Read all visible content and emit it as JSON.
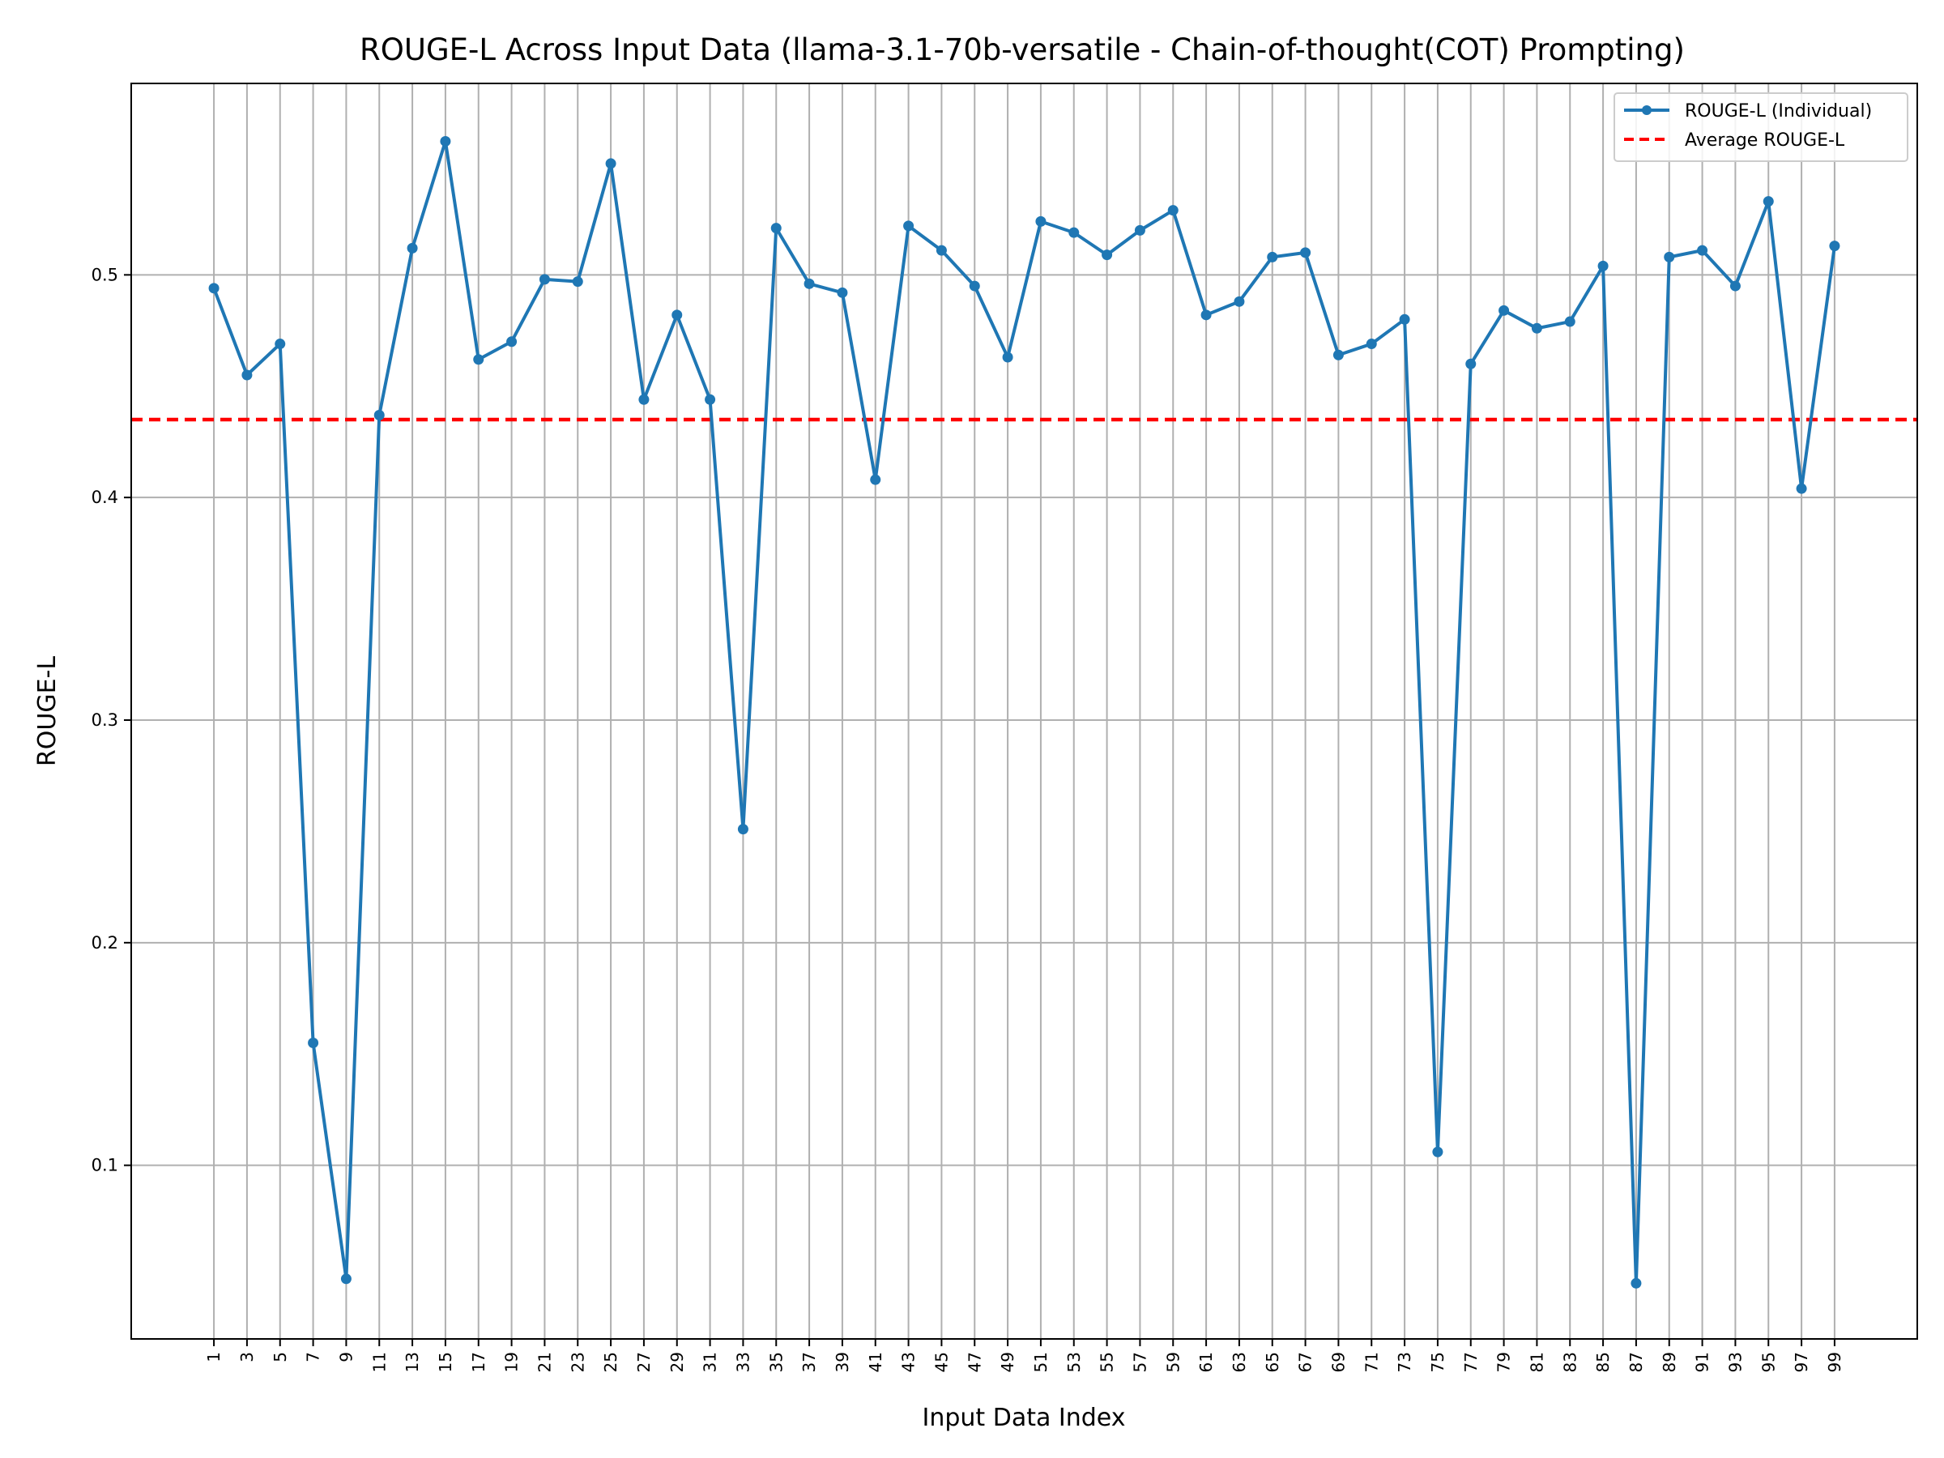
{
  "chart_data": {
    "type": "line",
    "title": "ROUGE-L Across Input Data (llama-3.1-70b-versatile - Chain-of-thought(COT) Prompting)",
    "xlabel": "Input Data Index",
    "ylabel": "ROUGE-L",
    "x": [
      1,
      3,
      5,
      7,
      9,
      11,
      13,
      15,
      17,
      19,
      21,
      23,
      25,
      27,
      29,
      31,
      33,
      35,
      37,
      39,
      41,
      43,
      45,
      47,
      49,
      51,
      53,
      55,
      57,
      59,
      61,
      63,
      65,
      67,
      69,
      71,
      73,
      75,
      77,
      79,
      81,
      83,
      85,
      87,
      89,
      91,
      93,
      95,
      97,
      99
    ],
    "x_tick_labels": [
      "1",
      "3",
      "5",
      "7",
      "9",
      "11",
      "13",
      "15",
      "17",
      "19",
      "21",
      "23",
      "25",
      "27",
      "29",
      "31",
      "33",
      "35",
      "37",
      "39",
      "41",
      "43",
      "45",
      "47",
      "49",
      "51",
      "53",
      "55",
      "57",
      "59",
      "61",
      "63",
      "65",
      "67",
      "69",
      "71",
      "73",
      "75",
      "77",
      "79",
      "81",
      "83",
      "85",
      "87",
      "89",
      "91",
      "93",
      "95",
      "97",
      "99"
    ],
    "y_ticks": [
      0.1,
      0.2,
      0.3,
      0.4,
      0.5
    ],
    "y_tick_labels": [
      "0.1",
      "0.2",
      "0.3",
      "0.4",
      "0.5"
    ],
    "xlim": [
      -4,
      104
    ],
    "ylim": [
      0.022,
      0.586
    ],
    "grid": true,
    "legend_position": "top-right",
    "series": [
      {
        "name": "ROUGE-L (Individual)",
        "color": "#1f77b4",
        "style": "solid line with circle markers",
        "values": [
          0.494,
          0.455,
          0.469,
          0.155,
          0.049,
          0.437,
          0.512,
          0.56,
          0.462,
          0.47,
          0.498,
          0.497,
          0.55,
          0.444,
          0.482,
          0.444,
          0.251,
          0.521,
          0.496,
          0.492,
          0.408,
          0.522,
          0.511,
          0.495,
          0.463,
          0.524,
          0.519,
          0.509,
          0.52,
          0.529,
          0.482,
          0.488,
          0.508,
          0.51,
          0.464,
          0.469,
          0.48,
          0.106,
          0.46,
          0.484,
          0.476,
          0.479,
          0.504,
          0.047,
          0.508,
          0.511,
          0.495,
          0.533,
          0.404,
          0.513
        ]
      }
    ],
    "reference_lines": [
      {
        "name": "Average ROUGE-L",
        "y": 0.435,
        "color": "#ff0000",
        "style": "dashed"
      }
    ]
  }
}
